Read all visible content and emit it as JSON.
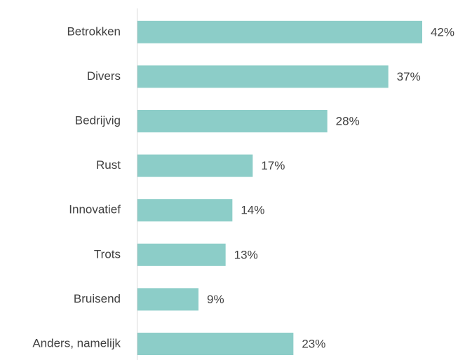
{
  "chart_data": {
    "type": "bar",
    "orientation": "horizontal",
    "categories": [
      "Betrokken",
      "Divers",
      "Bedrijvig",
      "Rust",
      "Innovatief",
      "Trots",
      "Bruisend",
      "Anders, namelijk"
    ],
    "values": [
      42,
      37,
      28,
      17,
      14,
      13,
      9,
      23
    ],
    "value_labels": [
      "42%",
      "37%",
      "28%",
      "17%",
      "14%",
      "13%",
      "9%",
      "23%"
    ],
    "color": "#8ccdc8"
  }
}
